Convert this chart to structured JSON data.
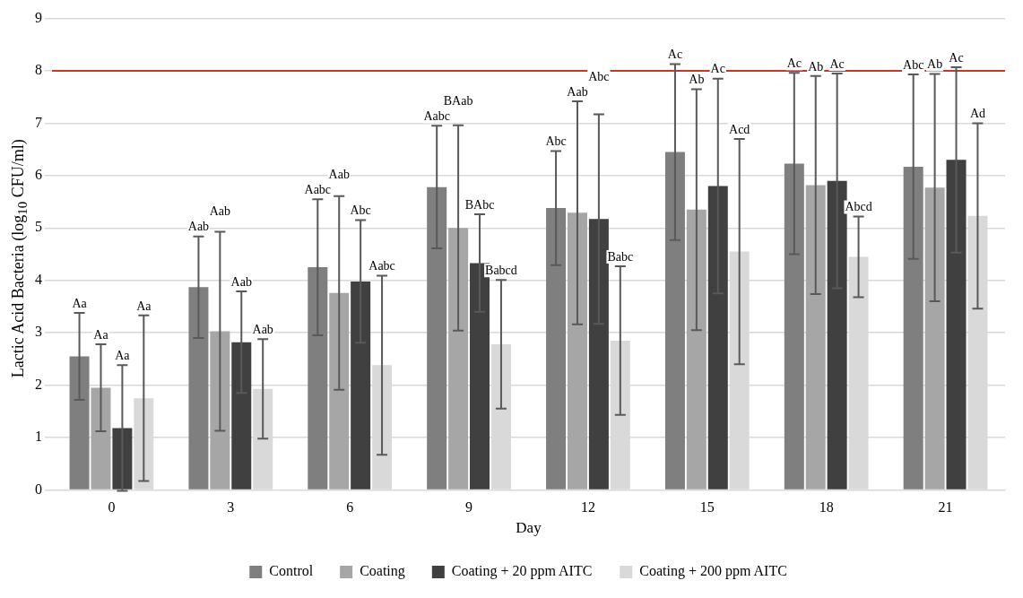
{
  "chart_data": {
    "type": "bar",
    "xlabel": "Day",
    "ylabel": "Lactic Acid Bacteria (log$_{10}$ CFU/ml)",
    "categories": [
      "0",
      "3",
      "6",
      "9",
      "12",
      "15",
      "18",
      "21"
    ],
    "series": [
      {
        "name": "Control",
        "color": "#7f7f7f",
        "values": [
          2.55,
          3.87,
          4.25,
          5.78,
          5.38,
          6.45,
          6.23,
          6.17
        ],
        "errors": [
          0.83,
          0.97,
          1.3,
          1.17,
          1.09,
          1.68,
          1.73,
          1.76
        ]
      },
      {
        "name": "Coating",
        "color": "#a6a6a6",
        "values": [
          1.95,
          3.03,
          3.76,
          5.0,
          5.29,
          5.35,
          5.82,
          5.77
        ],
        "errors": [
          0.83,
          1.9,
          1.85,
          1.96,
          2.13,
          2.3,
          2.08,
          2.17
        ]
      },
      {
        "name": "Coating + 20 ppm AITC",
        "color": "#404040",
        "values": [
          1.18,
          2.82,
          3.98,
          4.33,
          5.17,
          5.8,
          5.9,
          6.3
        ],
        "errors": [
          1.2,
          0.97,
          1.17,
          0.93,
          2.0,
          2.05,
          2.05,
          1.77
        ]
      },
      {
        "name": "Coating + 200 ppm AITC",
        "color": "#d9d9d9",
        "values": [
          1.75,
          1.93,
          2.38,
          2.78,
          2.85,
          4.55,
          4.45,
          5.23
        ],
        "errors": [
          1.58,
          0.95,
          1.71,
          1.23,
          1.42,
          2.15,
          0.77,
          1.77
        ]
      }
    ],
    "annotations": [
      "Aa",
      "Aab",
      "Aabc",
      "Aabc",
      "Abc",
      "Ac",
      "Ac",
      "Abc",
      "Aa",
      "Aab",
      "Aab",
      "BAab",
      "Aab",
      "Ab",
      "Ab",
      "Ab",
      "Aa",
      "Aab",
      "Abc",
      "BAbc",
      "Abc",
      "Ac",
      "Ac",
      "Ac",
      "Aa",
      "Aab",
      "Aabc",
      "Babcd",
      "Babc",
      "Acd",
      "Abcd",
      "Ad"
    ],
    "ylim": [
      0,
      9
    ],
    "yticks": [
      0,
      1,
      2,
      3,
      4,
      5,
      6,
      7,
      8,
      9
    ],
    "grid": "y",
    "legend": "bottom",
    "ref_lines": [
      {
        "axis": "y",
        "value": 8,
        "color": "#c0392b"
      }
    ]
  }
}
